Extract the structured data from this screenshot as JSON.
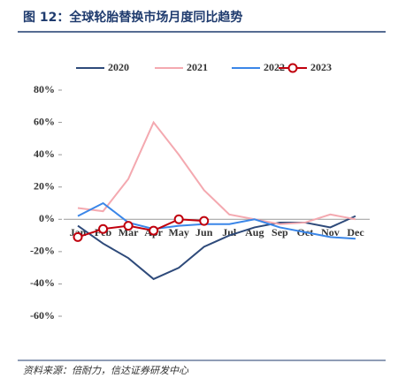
{
  "chart_data": {
    "type": "line",
    "title": "图 12：全球轮胎替换市场月度同比趋势",
    "source": "资料来源：倍耐力，信达证券研发中心",
    "categories": [
      "Jan",
      "Feb",
      "Mar",
      "Apr",
      "May",
      "Jun",
      "Jul",
      "Aug",
      "Sep",
      "Oct",
      "Nov",
      "Dec"
    ],
    "series": [
      {
        "name": "2020",
        "color": "#2e4a7a",
        "values": [
          -4,
          -15,
          -24,
          -37,
          -30,
          -17,
          -10,
          -5,
          -2,
          -2,
          -5,
          2
        ]
      },
      {
        "name": "2021",
        "color": "#f4a9b0",
        "values": [
          7,
          5,
          25,
          60,
          40,
          18,
          3,
          0,
          -3,
          -2,
          3,
          0
        ]
      },
      {
        "name": "2022",
        "color": "#3a86e8",
        "values": [
          2,
          10,
          -2,
          -6,
          -4,
          -3,
          -3,
          0,
          -5,
          -8,
          -11,
          -12
        ]
      },
      {
        "name": "2023",
        "color": "#c0000d",
        "marker": "circle",
        "values": [
          -11,
          -6,
          -4,
          -7,
          0,
          -1,
          null,
          null,
          null,
          null,
          null,
          null
        ]
      }
    ],
    "ylim": [
      -60,
      80
    ],
    "yticks": [
      {
        "value": -60,
        "label": "-60%"
      },
      {
        "value": -40,
        "label": "-40%"
      },
      {
        "value": -20,
        "label": "-20%"
      },
      {
        "value": 0,
        "label": "0%"
      },
      {
        "value": 20,
        "label": "20%"
      },
      {
        "value": 40,
        "label": "40%"
      },
      {
        "value": 60,
        "label": "60%"
      },
      {
        "value": 80,
        "label": "80%"
      }
    ],
    "legend": "top"
  }
}
